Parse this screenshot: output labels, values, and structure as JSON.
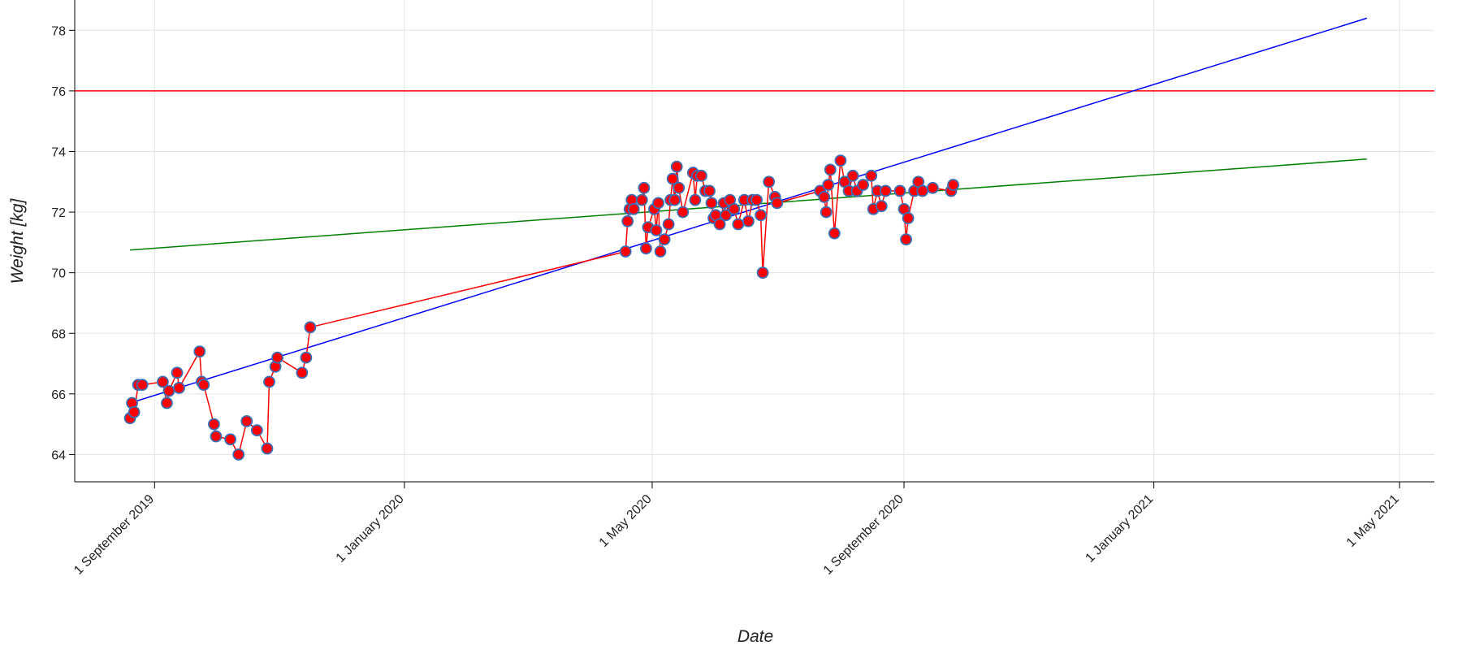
{
  "chart_data": {
    "type": "line",
    "xlabel": "Date",
    "ylabel": "Weight [kg]",
    "xlim": [
      "2019-07-24",
      "2021-05-18"
    ],
    "ylim": [
      63.1,
      79
    ],
    "xticks": [
      {
        "value": "2019-09-01",
        "label": "1 September 2019"
      },
      {
        "value": "2020-01-01",
        "label": "1 January 2020"
      },
      {
        "value": "2020-05-01",
        "label": "1 May 2020"
      },
      {
        "value": "2020-09-01",
        "label": "1 September 2020"
      },
      {
        "value": "2021-01-01",
        "label": "1 January 2021"
      },
      {
        "value": "2021-05-01",
        "label": "1 May 2021"
      }
    ],
    "yticks": [
      64,
      66,
      68,
      70,
      72,
      74,
      76,
      78
    ],
    "grid": true,
    "hline": {
      "value": 76,
      "color": "red"
    },
    "series": [
      {
        "color": "red",
        "marker_color": "red",
        "marker_edge": "#3b6fb6",
        "x": [
          "2019-08-20",
          "2019-08-21",
          "2019-08-22",
          "2019-08-24",
          "2019-08-26",
          "2019-09-05",
          "2019-09-07",
          "2019-09-08",
          "2019-09-12",
          "2019-09-13",
          "2019-09-23",
          "2019-09-24",
          "2019-09-25",
          "2019-09-30",
          "2019-10-01",
          "2019-10-08",
          "2019-10-12",
          "2019-10-16",
          "2019-10-21",
          "2019-10-26",
          "2019-10-27",
          "2019-10-30",
          "2019-10-31",
          "2019-11-12",
          "2019-11-14",
          "2019-11-16",
          "2020-04-18",
          "2020-04-19",
          "2020-04-20",
          "2020-04-21",
          "2020-04-22",
          "2020-04-26",
          "2020-04-27",
          "2020-04-28",
          "2020-04-29",
          "2020-05-02",
          "2020-05-03",
          "2020-05-04",
          "2020-05-05",
          "2020-05-07",
          "2020-05-09",
          "2020-05-10",
          "2020-05-11",
          "2020-05-12",
          "2020-05-13",
          "2020-05-14",
          "2020-05-16",
          "2020-05-21",
          "2020-05-22",
          "2020-05-23",
          "2020-05-25",
          "2020-05-27",
          "2020-05-29",
          "2020-05-30",
          "2020-05-31",
          "2020-06-01",
          "2020-06-03",
          "2020-06-05",
          "2020-06-06",
          "2020-06-08",
          "2020-06-10",
          "2020-06-12",
          "2020-06-15",
          "2020-06-17",
          "2020-06-19",
          "2020-06-21",
          "2020-06-23",
          "2020-06-24",
          "2020-06-27",
          "2020-06-30",
          "2020-07-01",
          "2020-07-22",
          "2020-07-24",
          "2020-07-25",
          "2020-07-26",
          "2020-07-27",
          "2020-07-29",
          "2020-08-01",
          "2020-08-03",
          "2020-08-05",
          "2020-08-07",
          "2020-08-09",
          "2020-08-12",
          "2020-08-16",
          "2020-08-17",
          "2020-08-19",
          "2020-08-21",
          "2020-08-23",
          "2020-08-30",
          "2020-09-01",
          "2020-09-02",
          "2020-09-03",
          "2020-09-06",
          "2020-09-08",
          "2020-09-10",
          "2020-09-15",
          "2020-09-24",
          "2020-09-25"
        ],
        "values": [
          65.2,
          65.7,
          65.4,
          66.3,
          66.3,
          66.4,
          65.7,
          66.1,
          66.7,
          66.2,
          67.4,
          66.4,
          66.3,
          65.0,
          64.6,
          64.5,
          64.0,
          65.1,
          64.8,
          64.2,
          66.4,
          66.9,
          67.2,
          66.7,
          67.2,
          68.2,
          70.7,
          71.7,
          72.1,
          72.4,
          72.1,
          72.4,
          72.8,
          70.8,
          71.5,
          72.1,
          71.4,
          72.3,
          70.7,
          71.1,
          71.6,
          72.4,
          73.1,
          72.4,
          73.5,
          72.8,
          72.0,
          73.3,
          72.4,
          73.2,
          73.2,
          72.7,
          72.7,
          72.3,
          71.8,
          71.9,
          71.6,
          72.3,
          71.9,
          72.4,
          72.1,
          71.6,
          72.4,
          71.7,
          72.4,
          72.4,
          71.9,
          70.0,
          73.0,
          72.5,
          72.3,
          72.7,
          72.5,
          72.0,
          72.9,
          73.4,
          71.3,
          73.7,
          73.0,
          72.7,
          73.2,
          72.7,
          72.9,
          73.2,
          72.1,
          72.7,
          72.2,
          72.7,
          72.7,
          72.1,
          71.1,
          71.8,
          72.7,
          73.0,
          72.7,
          72.8,
          72.7,
          72.9
        ]
      },
      {
        "color": "blue",
        "x": [
          "2019-08-20",
          "2021-04-15"
        ],
        "values": [
          65.7,
          78.4
        ]
      },
      {
        "color": "green",
        "x": [
          "2019-08-20",
          "2021-04-15"
        ],
        "values": [
          70.75,
          73.75
        ]
      }
    ]
  }
}
